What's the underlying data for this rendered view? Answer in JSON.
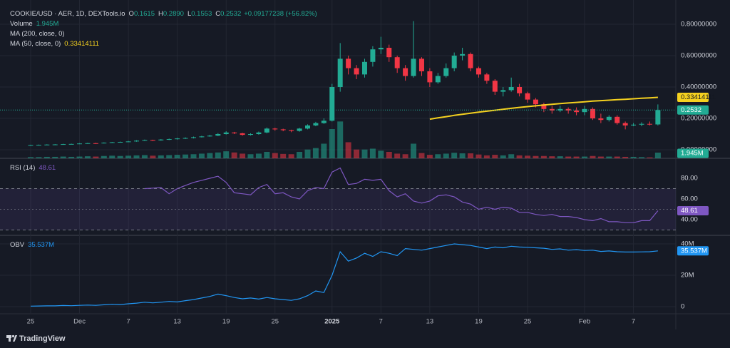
{
  "chart_data": [
    {
      "type": "candlestick",
      "title": "COOKIE/USD · AER, 1D, DEXTools.io",
      "ohlc_legend": [
        {
          "label": "O",
          "text": "0.1615"
        },
        {
          "label": "H",
          "text": "0.2890"
        },
        {
          "label": "L",
          "text": "0.1553"
        },
        {
          "label": "C",
          "text": "0.2532"
        }
      ],
      "change": "+0.09177238 (+56.82%)",
      "up_color": "#22ab94",
      "down_color": "#f23645",
      "grid": true,
      "x": [
        0,
        1,
        2,
        3,
        4,
        5,
        6,
        7,
        8,
        9,
        10,
        11,
        12,
        13,
        14,
        15,
        16,
        17,
        18,
        19,
        20,
        21,
        22,
        23,
        24,
        25,
        26,
        27,
        28,
        29,
        30,
        31,
        32,
        33,
        34,
        35,
        36,
        37,
        38,
        39,
        40,
        41,
        42,
        43,
        44,
        45,
        46,
        47,
        48,
        49,
        50,
        51,
        52,
        53,
        54,
        55,
        56,
        57,
        58,
        59,
        60,
        61,
        62,
        63,
        64,
        65,
        66,
        67,
        68,
        69,
        70,
        71,
        72,
        73,
        74,
        75,
        76,
        77
      ],
      "open": [
        0.029,
        0.03,
        0.031,
        0.033,
        0.034,
        0.036,
        0.037,
        0.04,
        0.042,
        0.041,
        0.045,
        0.048,
        0.05,
        0.053,
        0.058,
        0.062,
        0.06,
        0.065,
        0.068,
        0.072,
        0.075,
        0.08,
        0.085,
        0.09,
        0.1,
        0.11,
        0.105,
        0.095,
        0.1,
        0.11,
        0.135,
        0.13,
        0.125,
        0.12,
        0.135,
        0.155,
        0.17,
        0.185,
        0.4,
        0.58,
        0.52,
        0.48,
        0.56,
        0.64,
        0.65,
        0.59,
        0.52,
        0.47,
        0.58,
        0.5,
        0.43,
        0.47,
        0.52,
        0.6,
        0.61,
        0.52,
        0.48,
        0.44,
        0.37,
        0.38,
        0.4,
        0.36,
        0.32,
        0.29,
        0.26,
        0.25,
        0.26,
        0.25,
        0.24,
        0.26,
        0.2,
        0.19,
        0.21,
        0.17,
        0.155,
        0.16,
        0.165,
        0.1615
      ],
      "high": [
        0.032,
        0.033,
        0.035,
        0.036,
        0.038,
        0.039,
        0.042,
        0.044,
        0.044,
        0.047,
        0.05,
        0.052,
        0.056,
        0.061,
        0.065,
        0.064,
        0.068,
        0.071,
        0.076,
        0.079,
        0.084,
        0.089,
        0.095,
        0.106,
        0.118,
        0.114,
        0.108,
        0.105,
        0.116,
        0.142,
        0.14,
        0.134,
        0.128,
        0.14,
        0.162,
        0.178,
        0.2,
        0.42,
        0.68,
        0.6,
        0.54,
        0.58,
        0.66,
        0.72,
        0.67,
        0.6,
        0.54,
        0.82,
        0.59,
        0.52,
        0.49,
        0.55,
        0.62,
        0.65,
        0.62,
        0.53,
        0.49,
        0.45,
        0.4,
        0.46,
        0.42,
        0.37,
        0.33,
        0.3,
        0.28,
        0.28,
        0.27,
        0.27,
        0.28,
        0.27,
        0.23,
        0.22,
        0.22,
        0.18,
        0.17,
        0.175,
        0.18,
        0.289
      ],
      "low": [
        0.027,
        0.028,
        0.03,
        0.031,
        0.033,
        0.034,
        0.036,
        0.038,
        0.038,
        0.04,
        0.044,
        0.046,
        0.049,
        0.051,
        0.056,
        0.056,
        0.058,
        0.062,
        0.065,
        0.069,
        0.072,
        0.078,
        0.083,
        0.087,
        0.097,
        0.1,
        0.09,
        0.091,
        0.096,
        0.105,
        0.122,
        0.118,
        0.112,
        0.115,
        0.13,
        0.15,
        0.165,
        0.18,
        0.37,
        0.48,
        0.45,
        0.46,
        0.53,
        0.61,
        0.56,
        0.49,
        0.44,
        0.46,
        0.47,
        0.4,
        0.42,
        0.46,
        0.5,
        0.57,
        0.5,
        0.46,
        0.42,
        0.35,
        0.34,
        0.37,
        0.34,
        0.3,
        0.27,
        0.24,
        0.23,
        0.24,
        0.23,
        0.22,
        0.22,
        0.19,
        0.17,
        0.18,
        0.16,
        0.13,
        0.15,
        0.15,
        0.155,
        0.1553
      ],
      "close": [
        0.03,
        0.031,
        0.033,
        0.034,
        0.036,
        0.037,
        0.04,
        0.042,
        0.041,
        0.045,
        0.048,
        0.05,
        0.053,
        0.058,
        0.062,
        0.06,
        0.065,
        0.068,
        0.072,
        0.075,
        0.08,
        0.085,
        0.09,
        0.1,
        0.11,
        0.105,
        0.095,
        0.1,
        0.11,
        0.135,
        0.13,
        0.125,
        0.12,
        0.135,
        0.155,
        0.17,
        0.185,
        0.4,
        0.58,
        0.52,
        0.48,
        0.56,
        0.64,
        0.65,
        0.59,
        0.52,
        0.47,
        0.58,
        0.5,
        0.43,
        0.47,
        0.52,
        0.6,
        0.61,
        0.52,
        0.48,
        0.44,
        0.37,
        0.38,
        0.4,
        0.36,
        0.32,
        0.29,
        0.26,
        0.25,
        0.26,
        0.25,
        0.24,
        0.26,
        0.2,
        0.19,
        0.21,
        0.17,
        0.155,
        0.16,
        0.165,
        0.1615,
        0.2532
      ],
      "volume": {
        "name": "Volume",
        "last_label": "1.945M",
        "values": [
          0.4,
          0.4,
          0.5,
          0.5,
          0.6,
          0.5,
          0.6,
          0.7,
          0.6,
          0.8,
          0.9,
          0.8,
          0.9,
          1.0,
          1.1,
          0.9,
          1.0,
          1.1,
          1.2,
          1.3,
          1.4,
          1.6,
          1.8,
          2.0,
          2.4,
          2.0,
          1.6,
          1.4,
          1.6,
          2.2,
          1.8,
          1.5,
          1.4,
          2.2,
          3.0,
          3.5,
          5.0,
          10.0,
          12.6,
          5.5,
          3.0,
          3.0,
          3.3,
          2.6,
          2.2,
          1.6,
          1.4,
          5.0,
          1.8,
          1.2,
          1.4,
          1.6,
          1.9,
          1.7,
          1.7,
          1.3,
          1.0,
          1.2,
          1.0,
          1.4,
          1.0,
          0.9,
          0.8,
          0.8,
          0.7,
          0.7,
          0.6,
          0.6,
          0.6,
          0.8,
          0.6,
          0.6,
          0.6,
          0.5,
          0.5,
          0.4,
          0.3,
          1.945
        ]
      },
      "indicators": [
        {
          "name": "MA (200, close, 0)"
        },
        {
          "name": "MA (50, close, 0)",
          "color": "#f5d11f",
          "values": [
            null,
            null,
            null,
            null,
            null,
            null,
            null,
            null,
            null,
            null,
            null,
            null,
            null,
            null,
            null,
            null,
            null,
            null,
            null,
            null,
            null,
            null,
            null,
            null,
            null,
            null,
            null,
            null,
            null,
            null,
            null,
            null,
            null,
            null,
            null,
            null,
            null,
            null,
            null,
            null,
            null,
            null,
            null,
            null,
            null,
            null,
            null,
            null,
            null,
            0.195,
            0.203,
            0.211,
            0.219,
            0.226,
            0.233,
            0.24,
            0.246,
            0.252,
            0.258,
            0.264,
            0.27,
            0.275,
            0.28,
            0.285,
            0.29,
            0.294,
            0.298,
            0.302,
            0.306,
            0.31,
            0.313,
            0.316,
            0.319,
            0.322,
            0.325,
            0.328,
            0.331,
            0.33414111
          ]
        }
      ],
      "xlim": [
        -3.76,
        79.2
      ],
      "xticks": [
        {
          "value": 0,
          "label": "25"
        },
        {
          "value": 6,
          "label": "Dec"
        },
        {
          "value": 12,
          "label": "7"
        },
        {
          "value": 18,
          "label": "13"
        },
        {
          "value": 24,
          "label": "19"
        },
        {
          "value": 30,
          "label": "25"
        },
        {
          "value": 37,
          "label": "2025"
        },
        {
          "value": 43,
          "label": "7"
        },
        {
          "value": 49,
          "label": "13"
        },
        {
          "value": 55,
          "label": "19"
        },
        {
          "value": 61,
          "label": "25"
        },
        {
          "value": 68,
          "label": "Feb"
        },
        {
          "value": 74,
          "label": "7"
        }
      ],
      "ylim": [
        -0.0545,
        0.9545
      ],
      "yticks": [
        {
          "value": 0,
          "label": "0.00000000"
        },
        {
          "value": 0.2,
          "label": "0.20000000"
        },
        {
          "value": 0.4,
          "label": "0.40000000"
        },
        {
          "value": 0.6,
          "label": "0.60000000"
        },
        {
          "value": 0.8,
          "label": "0.80000000"
        }
      ]
    },
    {
      "type": "line",
      "title": "RSI (14)",
      "color": "#7e57c2",
      "values": [
        null,
        null,
        null,
        null,
        null,
        null,
        null,
        null,
        null,
        null,
        null,
        null,
        null,
        null,
        70,
        70.5,
        71,
        65,
        70,
        73,
        76,
        78,
        80,
        82,
        76,
        66,
        65,
        64,
        71,
        74,
        65,
        66,
        62,
        60,
        68,
        71,
        70,
        86,
        90,
        74,
        75,
        79,
        78,
        79,
        68,
        62,
        65,
        58,
        56,
        58,
        63,
        64,
        62,
        57,
        55,
        50,
        52,
        50,
        52,
        51,
        47,
        47,
        45,
        44,
        45,
        43,
        43,
        42,
        40,
        39,
        41,
        38,
        38,
        37,
        37,
        39,
        39,
        48.61
      ],
      "band": [
        30,
        70
      ],
      "midline": 50,
      "ylim": [
        24.8,
        99.3
      ],
      "yticks": [
        {
          "value": 40,
          "label": "40.00"
        },
        {
          "value": 60,
          "label": "60.00"
        },
        {
          "value": 80,
          "label": "80.00"
        }
      ]
    },
    {
      "type": "line",
      "title": "OBV",
      "last_label": "35.537M",
      "color": "#2196f3",
      "values": [
        0.3,
        0.4,
        0.5,
        0.5,
        0.7,
        0.6,
        0.8,
        1.0,
        0.8,
        1.2,
        1.5,
        1.3,
        1.8,
        2.2,
        2.8,
        2.4,
        2.8,
        3.3,
        3.0,
        3.8,
        4.5,
        5.5,
        6.5,
        8.0,
        7.0,
        5.8,
        5.0,
        5.5,
        4.8,
        5.8,
        5.0,
        4.5,
        4.0,
        5.0,
        7.0,
        10.0,
        9.0,
        20.0,
        35.0,
        29.0,
        31.0,
        34.0,
        32.0,
        35.0,
        34.0,
        32.5,
        37.0,
        36.5,
        36.0,
        37.0,
        38.0,
        39.0,
        40.0,
        39.5,
        39.0,
        38.0,
        37.0,
        38.0,
        37.5,
        38.5,
        38.0,
        37.8,
        37.5,
        37.2,
        36.5,
        36.8,
        36.0,
        36.3,
        35.8,
        36.0,
        35.2,
        35.5,
        35.0,
        34.8,
        34.8,
        34.9,
        35.0,
        35.537
      ],
      "ylim": [
        -4.55,
        45.45
      ],
      "yticks": [
        0,
        {
          "value": 20,
          "label": "20M"
        },
        {
          "value": 40,
          "label": "40M"
        }
      ]
    }
  ],
  "footer": {
    "brand": "TradingView"
  }
}
